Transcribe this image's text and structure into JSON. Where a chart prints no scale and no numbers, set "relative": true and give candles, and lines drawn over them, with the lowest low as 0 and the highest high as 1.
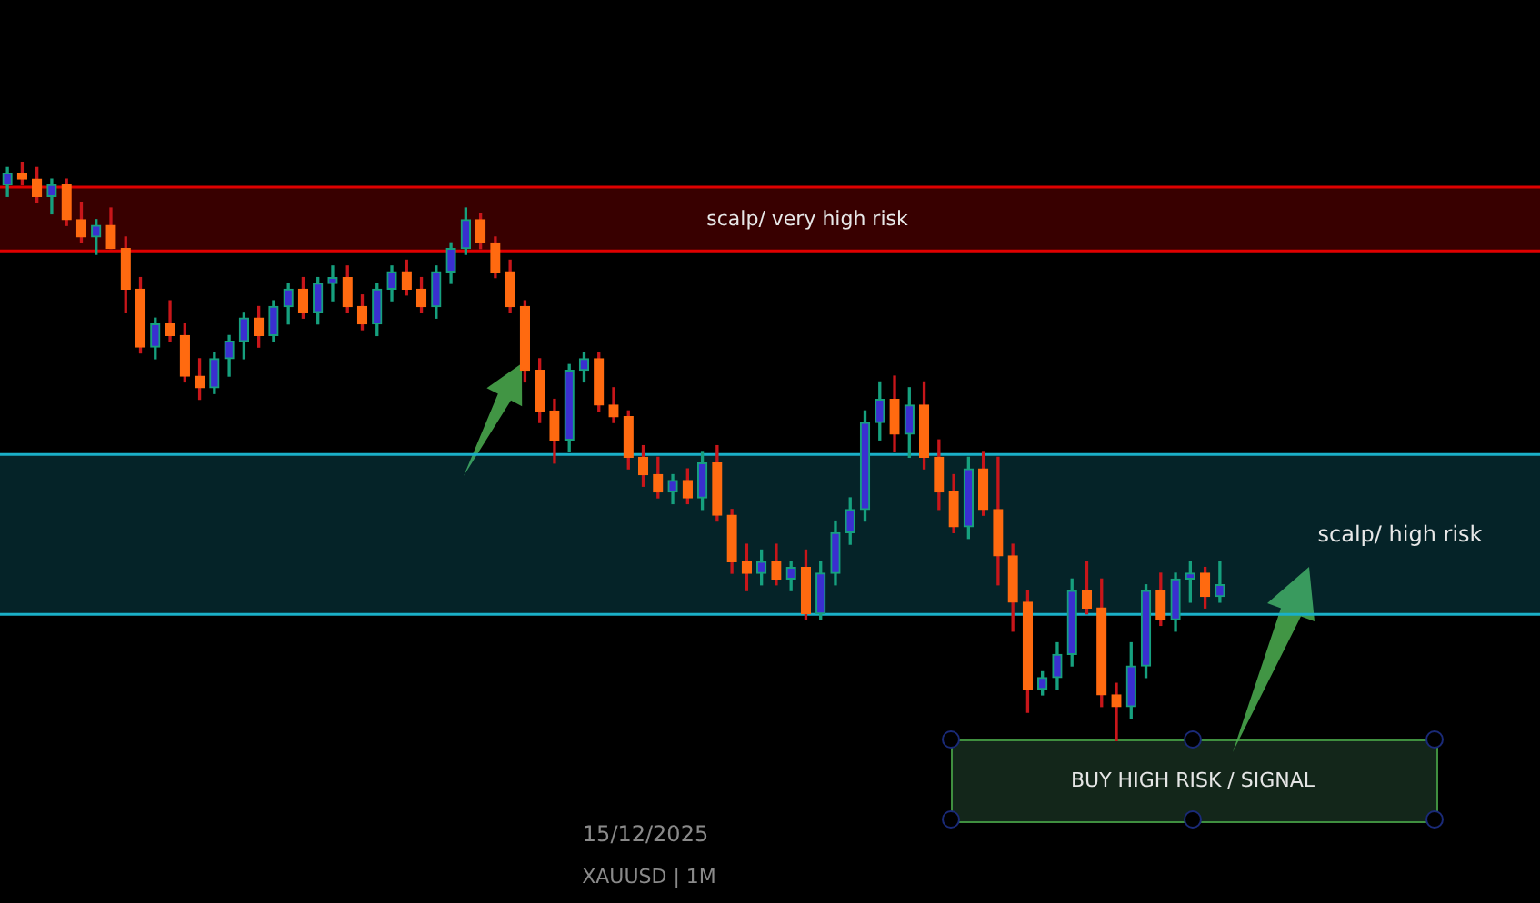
{
  "chart_data": {
    "type": "candlestick",
    "relative": true,
    "categories": [
      null,
      null,
      null,
      null,
      null,
      null,
      null,
      null,
      null,
      null,
      null,
      null,
      null,
      null,
      null,
      null,
      null,
      null,
      null,
      null,
      null,
      null,
      null,
      null,
      null,
      null,
      null,
      null,
      null,
      null,
      null,
      null,
      null,
      null,
      null,
      null,
      null,
      null,
      null,
      null,
      null,
      null,
      null,
      null,
      null,
      null,
      null,
      null,
      null,
      null,
      null,
      null,
      null,
      null,
      null,
      null,
      null,
      null,
      null,
      null,
      null,
      null,
      null,
      null,
      null,
      null,
      null,
      null,
      null,
      null,
      null,
      null,
      null,
      null,
      null,
      null,
      null,
      null,
      null,
      null,
      null,
      null,
      null
    ],
    "ohlc": [
      [
        0.96,
        0.99,
        0.94,
        0.98
      ],
      [
        0.98,
        1.0,
        0.96,
        0.97
      ],
      [
        0.97,
        0.99,
        0.93,
        0.94
      ],
      [
        0.94,
        0.97,
        0.91,
        0.96
      ],
      [
        0.96,
        0.97,
        0.89,
        0.9
      ],
      [
        0.9,
        0.93,
        0.86,
        0.87
      ],
      [
        0.87,
        0.9,
        0.84,
        0.89
      ],
      [
        0.89,
        0.92,
        0.85,
        0.85
      ],
      [
        0.85,
        0.87,
        0.74,
        0.78
      ],
      [
        0.78,
        0.8,
        0.67,
        0.68
      ],
      [
        0.68,
        0.73,
        0.66,
        0.72
      ],
      [
        0.72,
        0.76,
        0.69,
        0.7
      ],
      [
        0.7,
        0.72,
        0.62,
        0.63
      ],
      [
        0.63,
        0.66,
        0.59,
        0.61
      ],
      [
        0.61,
        0.67,
        0.6,
        0.66
      ],
      [
        0.66,
        0.7,
        0.63,
        0.69
      ],
      [
        0.69,
        0.74,
        0.66,
        0.73
      ],
      [
        0.73,
        0.75,
        0.68,
        0.7
      ],
      [
        0.7,
        0.76,
        0.69,
        0.75
      ],
      [
        0.75,
        0.79,
        0.72,
        0.78
      ],
      [
        0.78,
        0.8,
        0.73,
        0.74
      ],
      [
        0.74,
        0.8,
        0.72,
        0.79
      ],
      [
        0.79,
        0.82,
        0.76,
        0.8
      ],
      [
        0.8,
        0.82,
        0.74,
        0.75
      ],
      [
        0.75,
        0.77,
        0.71,
        0.72
      ],
      [
        0.72,
        0.79,
        0.7,
        0.78
      ],
      [
        0.78,
        0.82,
        0.76,
        0.81
      ],
      [
        0.81,
        0.83,
        0.77,
        0.78
      ],
      [
        0.78,
        0.8,
        0.74,
        0.75
      ],
      [
        0.75,
        0.82,
        0.73,
        0.81
      ],
      [
        0.81,
        0.86,
        0.79,
        0.85
      ],
      [
        0.85,
        0.92,
        0.84,
        0.9
      ],
      [
        0.9,
        0.91,
        0.85,
        0.86
      ],
      [
        0.86,
        0.87,
        0.8,
        0.81
      ],
      [
        0.81,
        0.83,
        0.74,
        0.75
      ],
      [
        0.75,
        0.76,
        0.62,
        0.64
      ],
      [
        0.64,
        0.66,
        0.55,
        0.57
      ],
      [
        0.57,
        0.59,
        0.48,
        0.52
      ],
      [
        0.52,
        0.65,
        0.5,
        0.64
      ],
      [
        0.64,
        0.67,
        0.62,
        0.66
      ],
      [
        0.66,
        0.67,
        0.57,
        0.58
      ],
      [
        0.58,
        0.61,
        0.55,
        0.56
      ],
      [
        0.56,
        0.57,
        0.47,
        0.49
      ],
      [
        0.49,
        0.51,
        0.44,
        0.46
      ],
      [
        0.46,
        0.49,
        0.42,
        0.43
      ],
      [
        0.43,
        0.46,
        0.41,
        0.45
      ],
      [
        0.45,
        0.47,
        0.41,
        0.42
      ],
      [
        0.42,
        0.5,
        0.4,
        0.48
      ],
      [
        0.48,
        0.51,
        0.38,
        0.39
      ],
      [
        0.39,
        0.4,
        0.29,
        0.31
      ],
      [
        0.31,
        0.34,
        0.26,
        0.29
      ],
      [
        0.29,
        0.33,
        0.27,
        0.31
      ],
      [
        0.31,
        0.34,
        0.27,
        0.28
      ],
      [
        0.28,
        0.31,
        0.26,
        0.3
      ],
      [
        0.3,
        0.33,
        0.21,
        0.22
      ],
      [
        0.22,
        0.31,
        0.21,
        0.29
      ],
      [
        0.29,
        0.38,
        0.27,
        0.36
      ],
      [
        0.36,
        0.42,
        0.34,
        0.4
      ],
      [
        0.4,
        0.57,
        0.38,
        0.55
      ],
      [
        0.55,
        0.62,
        0.52,
        0.59
      ],
      [
        0.59,
        0.63,
        0.5,
        0.53
      ],
      [
        0.53,
        0.61,
        0.49,
        0.58
      ],
      [
        0.58,
        0.62,
        0.47,
        0.49
      ],
      [
        0.49,
        0.52,
        0.4,
        0.43
      ],
      [
        0.43,
        0.46,
        0.36,
        0.37
      ],
      [
        0.37,
        0.49,
        0.35,
        0.47
      ],
      [
        0.47,
        0.5,
        0.39,
        0.4
      ],
      [
        0.4,
        0.49,
        0.27,
        0.32
      ],
      [
        0.32,
        0.34,
        0.19,
        0.24
      ],
      [
        0.24,
        0.26,
        0.05,
        0.09
      ],
      [
        0.09,
        0.12,
        0.08,
        0.11
      ],
      [
        0.11,
        0.17,
        0.09,
        0.15
      ],
      [
        0.15,
        0.28,
        0.13,
        0.26
      ],
      [
        0.26,
        0.31,
        0.22,
        0.23
      ],
      [
        0.23,
        0.28,
        0.06,
        0.08
      ],
      [
        0.08,
        0.1,
        0.0,
        0.06
      ],
      [
        0.06,
        0.17,
        0.04,
        0.13
      ],
      [
        0.13,
        0.27,
        0.11,
        0.26
      ],
      [
        0.26,
        0.29,
        0.2,
        0.21
      ],
      [
        0.21,
        0.29,
        0.19,
        0.28
      ],
      [
        0.28,
        0.31,
        0.24,
        0.29
      ],
      [
        0.29,
        0.3,
        0.23,
        0.25
      ],
      [
        0.25,
        0.31,
        0.24,
        0.27
      ]
    ],
    "bands": [
      {
        "axis": "y",
        "from": 0.846,
        "to": 0.956,
        "label": "scalp/ very high risk",
        "color": "#e00000"
      },
      {
        "axis": "y",
        "from": 0.219,
        "to": 0.495,
        "label": "scalp/ high risk",
        "color": "#1ab0c8"
      }
    ],
    "ref_lines": [
      {
        "axis": "y",
        "value": 0.956,
        "color": "#e00000"
      },
      {
        "axis": "y",
        "value": 0.846,
        "color": "#e00000"
      },
      {
        "axis": "y",
        "value": 0.495,
        "color": "#1ab0c8"
      },
      {
        "axis": "y",
        "value": 0.219,
        "color": "#1ab0c8"
      }
    ],
    "annotations": [
      "15/12/2025",
      "XAUUSD | 1M",
      "BUY HIGH RISK / SIGNAL"
    ]
  }
}
